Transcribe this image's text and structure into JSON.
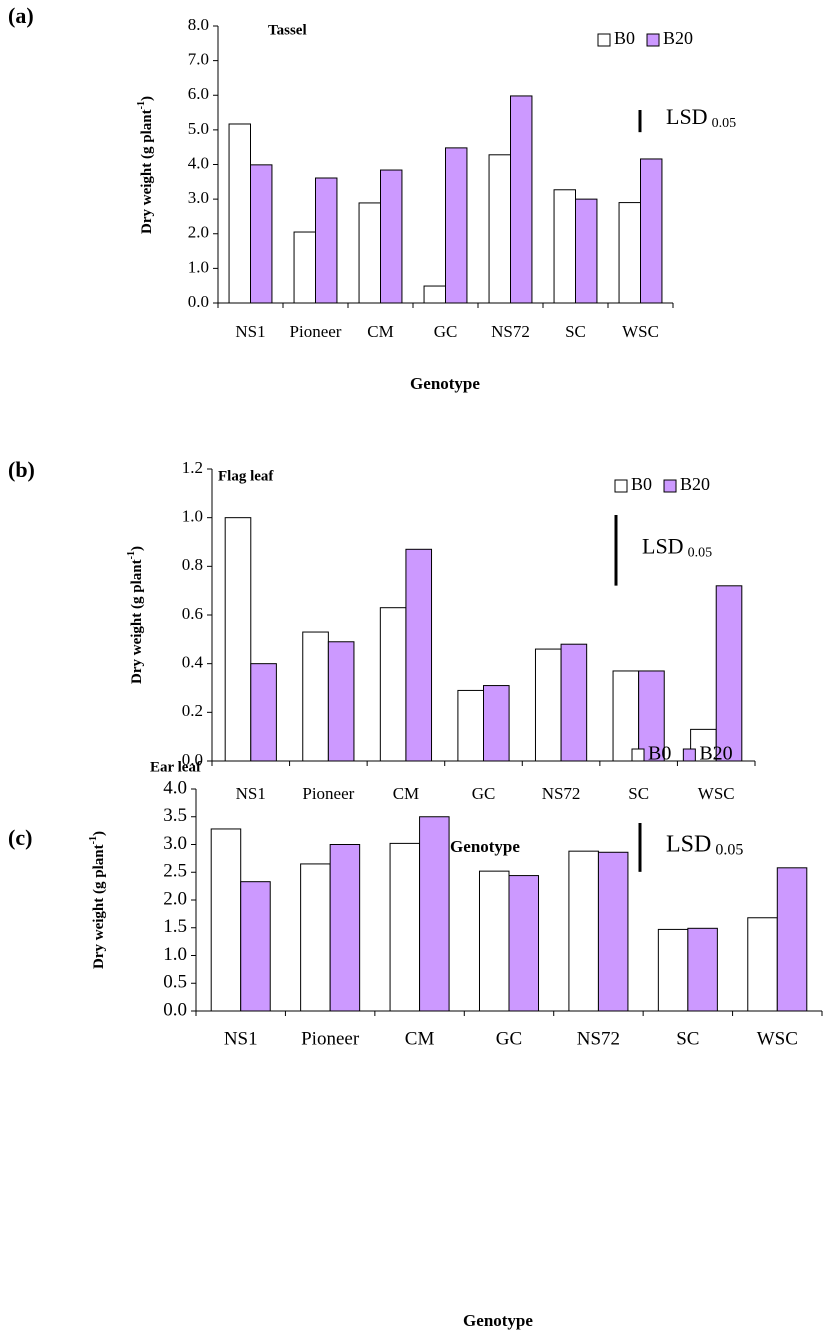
{
  "chart_data": [
    {
      "type": "bar",
      "panel_label": "(a)",
      "title": "Tassel",
      "x_label": "Genotype",
      "y_label": [
        "Dry weight (g plant",
        "-1",
        ")"
      ],
      "categories": [
        "NS1",
        "Pioneer",
        "CM",
        "GC",
        "NS72",
        "SC",
        "WSC"
      ],
      "series": [
        {
          "name": "B0",
          "color": "#ffffff",
          "values": [
            5.17,
            2.05,
            2.89,
            0.49,
            4.28,
            3.27,
            2.9
          ]
        },
        {
          "name": "B20",
          "color": "#cc99ff",
          "values": [
            3.99,
            3.61,
            3.84,
            4.48,
            5.98,
            3.0,
            4.16
          ]
        }
      ],
      "ylim": [
        0,
        8
      ],
      "yticks": [
        {
          "value": 0,
          "label": "0.0"
        },
        {
          "value": 1,
          "label": "1.0"
        },
        {
          "value": 2,
          "label": "2.0"
        },
        {
          "value": 3,
          "label": "3.0"
        },
        {
          "value": 4,
          "label": "4.0"
        },
        {
          "value": 5,
          "label": "5.0"
        },
        {
          "value": 6,
          "label": "6.0"
        },
        {
          "value": 7,
          "label": "7.0"
        },
        {
          "value": 8,
          "label": "8.0"
        }
      ],
      "lsd": {
        "value": 0.64,
        "label": "LSD",
        "level": "0.05"
      }
    },
    {
      "type": "bar",
      "panel_label": "(b)",
      "title": "Flag leaf",
      "x_label": "Genotype",
      "y_label": [
        "Dry weight (g plant",
        "-1",
        ")"
      ],
      "categories": [
        "NS1",
        "Pioneer",
        "CM",
        "GC",
        "NS72",
        "SC",
        "WSC"
      ],
      "series": [
        {
          "name": "B0",
          "color": "#ffffff",
          "values": [
            1.0,
            0.53,
            0.63,
            0.29,
            0.46,
            0.37,
            0.13
          ]
        },
        {
          "name": "B20",
          "color": "#cc99ff",
          "values": [
            0.4,
            0.49,
            0.87,
            0.31,
            0.48,
            0.37,
            0.72
          ]
        }
      ],
      "ylim": [
        0,
        1.2
      ],
      "yticks": [
        {
          "value": 0,
          "label": "0.0"
        },
        0.2,
        0.4,
        0.6,
        0.8,
        {
          "value": 1,
          "label": "1.0"
        },
        1.2
      ],
      "lsd": {
        "value": 0.29,
        "label": "LSD",
        "level": "0.05"
      }
    },
    {
      "type": "bar",
      "panel_label": "(c)",
      "title": "Ear leaf",
      "x_label": "Genotype",
      "y_label": [
        "Dry weight (g plant",
        "-1",
        ")"
      ],
      "categories": [
        "NS1",
        "Pioneer",
        "CM",
        "GC",
        "NS72",
        "SC",
        "WSC"
      ],
      "series": [
        {
          "name": "B0",
          "color": "#ffffff",
          "values": [
            3.28,
            2.65,
            3.02,
            2.52,
            2.88,
            1.47,
            1.68
          ]
        },
        {
          "name": "B20",
          "color": "#cc99ff",
          "values": [
            2.33,
            3.0,
            3.5,
            2.44,
            2.86,
            1.49,
            2.58
          ]
        }
      ],
      "ylim": [
        0,
        4
      ],
      "yticks": [
        {
          "value": 0,
          "label": "0.0"
        },
        0.5,
        {
          "value": 1,
          "label": "1.0"
        },
        1.5,
        {
          "value": 2,
          "label": "2.0"
        },
        2.5,
        {
          "value": 3,
          "label": "3.0"
        },
        3.5,
        {
          "value": 4,
          "label": "4.0"
        }
      ],
      "lsd": {
        "value": 0.88,
        "label": "LSD",
        "level": "0.05"
      }
    }
  ]
}
